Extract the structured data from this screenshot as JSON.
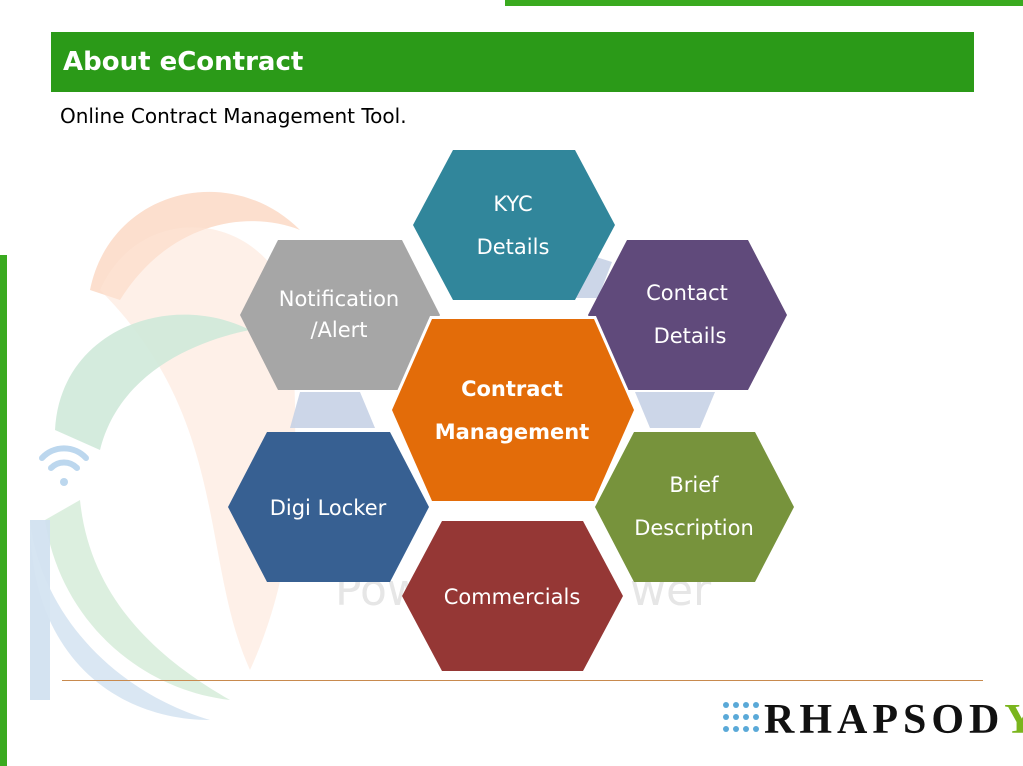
{
  "slide": {
    "title": "About eContract",
    "subtitle": "Online Contract Management Tool."
  },
  "diagram": {
    "center": {
      "line1": "Contract",
      "line2": "Management",
      "color": "#e36c09"
    },
    "nodes": [
      {
        "id": "kyc",
        "line1": "KYC",
        "line2": "Details",
        "color": "#31869b"
      },
      {
        "id": "contact",
        "line1": "Contact",
        "line2": "Details",
        "color": "#604a7b"
      },
      {
        "id": "brief",
        "line1": "Brief",
        "line2": "Description",
        "color": "#77933c"
      },
      {
        "id": "commercials",
        "line1": "Commercials",
        "color": "#953735"
      },
      {
        "id": "digilocker",
        "line1": "Digi Locker",
        "color": "#376092"
      },
      {
        "id": "notification",
        "line1": "Notification",
        "line2": "/Alert",
        "color": "#a6a6a6"
      }
    ]
  },
  "branding": {
    "logo_text": "RHAPSOD",
    "logo_text_last": "Y",
    "logo_icon": "dot-grid-icon",
    "background_logo": "india-emblem-watermark",
    "accent_green": "#2b9a18",
    "dot_blue": "#5aa9d8"
  }
}
